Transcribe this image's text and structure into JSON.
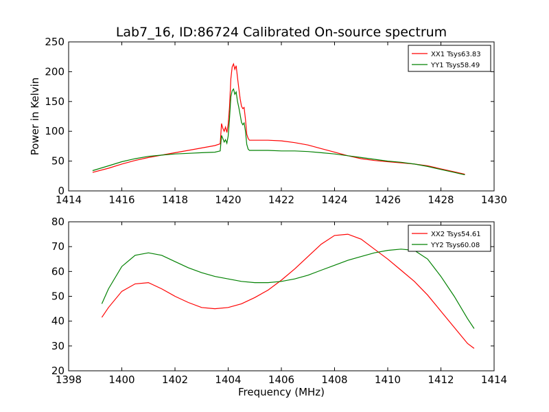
{
  "title": "Lab7_16, ID:86724 Calibrated On-source spectrum",
  "colors": {
    "series1": "#ff0000",
    "series2": "#008000"
  },
  "chart_data": [
    {
      "type": "line",
      "title": "Lab7_16, ID:86724 Calibrated On-source spectrum",
      "xlabel": "",
      "ylabel": "Power in Kelvin",
      "xlim": [
        1414,
        1430
      ],
      "ylim": [
        0,
        250
      ],
      "xticks": [
        1414,
        1416,
        1418,
        1420,
        1422,
        1424,
        1426,
        1428,
        1430
      ],
      "yticks": [
        0,
        50,
        100,
        150,
        200,
        250
      ],
      "grid": false,
      "legend_position": "top-right",
      "series": [
        {
          "name": "XX1 Tsys63.83",
          "color": "#ff0000",
          "x": [
            1414.9,
            1415.5,
            1416.0,
            1416.5,
            1417.0,
            1417.5,
            1418.0,
            1418.5,
            1419.0,
            1419.5,
            1419.7,
            1419.75,
            1419.8,
            1419.85,
            1419.9,
            1419.95,
            1420.0,
            1420.05,
            1420.1,
            1420.15,
            1420.2,
            1420.25,
            1420.3,
            1420.35,
            1420.4,
            1420.45,
            1420.5,
            1420.55,
            1420.6,
            1420.65,
            1420.7,
            1420.75,
            1420.8,
            1421.0,
            1421.5,
            1422.0,
            1422.5,
            1423.0,
            1423.5,
            1424.0,
            1424.5,
            1425.0,
            1425.5,
            1426.0,
            1426.5,
            1427.0,
            1427.5,
            1428.0,
            1428.5,
            1428.9
          ],
          "y": [
            31,
            38,
            45,
            51,
            56,
            60,
            64,
            68,
            72,
            76,
            79,
            113,
            105,
            100,
            107,
            98,
            112,
            140,
            188,
            208,
            213,
            204,
            210,
            190,
            172,
            155,
            142,
            138,
            140,
            120,
            95,
            88,
            85,
            85,
            85,
            84,
            81,
            77,
            71,
            65,
            59,
            54,
            51,
            49,
            47,
            45,
            42,
            37,
            32,
            28
          ]
        },
        {
          "name": "YY1 Tsys58.49",
          "color": "#008000",
          "x": [
            1414.9,
            1415.5,
            1416.0,
            1416.5,
            1417.0,
            1417.5,
            1418.0,
            1418.5,
            1419.0,
            1419.5,
            1419.7,
            1419.75,
            1419.8,
            1419.85,
            1419.9,
            1419.95,
            1420.0,
            1420.05,
            1420.1,
            1420.15,
            1420.2,
            1420.25,
            1420.3,
            1420.35,
            1420.4,
            1420.45,
            1420.5,
            1420.55,
            1420.6,
            1420.65,
            1420.7,
            1420.75,
            1420.8,
            1421.0,
            1421.5,
            1422.0,
            1422.5,
            1423.0,
            1423.5,
            1424.0,
            1424.5,
            1425.0,
            1425.5,
            1426.0,
            1426.5,
            1427.0,
            1427.5,
            1428.0,
            1428.5,
            1428.9
          ],
          "y": [
            34,
            42,
            49,
            54,
            58,
            60,
            62,
            63,
            64,
            65,
            67,
            93,
            88,
            82,
            86,
            80,
            92,
            120,
            158,
            168,
            171,
            162,
            166,
            150,
            140,
            128,
            115,
            111,
            114,
            100,
            78,
            70,
            68,
            68,
            68,
            67,
            67,
            66,
            64,
            62,
            59,
            56,
            53,
            50,
            48,
            45,
            41,
            36,
            31,
            27
          ]
        }
      ]
    },
    {
      "type": "line",
      "title": "",
      "xlabel": "Frequency (MHz)",
      "ylabel": "",
      "xlim": [
        1398,
        1414
      ],
      "ylim": [
        20,
        80
      ],
      "xticks": [
        1398,
        1400,
        1402,
        1404,
        1406,
        1408,
        1410,
        1412,
        1414
      ],
      "yticks": [
        20,
        30,
        40,
        50,
        60,
        70,
        80
      ],
      "grid": false,
      "legend_position": "top-right",
      "series": [
        {
          "name": "XX2 Tsys54.61",
          "color": "#ff0000",
          "x": [
            1399.25,
            1399.5,
            1400.0,
            1400.5,
            1401.0,
            1401.5,
            1402.0,
            1402.5,
            1403.0,
            1403.5,
            1404.0,
            1404.5,
            1405.0,
            1405.5,
            1406.0,
            1406.5,
            1407.0,
            1407.5,
            1408.0,
            1408.5,
            1409.0,
            1409.5,
            1410.0,
            1410.5,
            1411.0,
            1411.5,
            1412.0,
            1412.5,
            1413.0,
            1413.25
          ],
          "y": [
            41.5,
            45.5,
            52,
            55,
            55.5,
            53,
            50,
            47.5,
            45.5,
            45,
            45.5,
            47,
            49.5,
            52.5,
            56.5,
            61,
            66,
            71,
            74.5,
            75,
            73,
            69,
            65,
            60.5,
            56,
            50.5,
            44,
            37.5,
            31,
            29
          ]
        },
        {
          "name": "YY2 Tsys60.08",
          "color": "#008000",
          "x": [
            1399.25,
            1399.5,
            1400.0,
            1400.5,
            1401.0,
            1401.5,
            1402.0,
            1402.5,
            1403.0,
            1403.5,
            1404.0,
            1404.5,
            1405.0,
            1405.5,
            1406.0,
            1406.5,
            1407.0,
            1407.5,
            1408.0,
            1408.5,
            1409.0,
            1409.5,
            1410.0,
            1410.5,
            1411.0,
            1411.5,
            1412.0,
            1412.5,
            1413.0,
            1413.25
          ],
          "y": [
            47,
            53,
            62,
            66.5,
            67.5,
            66.5,
            64,
            61.5,
            59.5,
            58,
            57,
            56,
            55.5,
            55.5,
            56,
            57,
            58.5,
            60.5,
            62.5,
            64.5,
            66,
            67.5,
            68.5,
            69,
            68.5,
            65,
            58,
            50,
            41,
            37
          ]
        }
      ]
    }
  ]
}
